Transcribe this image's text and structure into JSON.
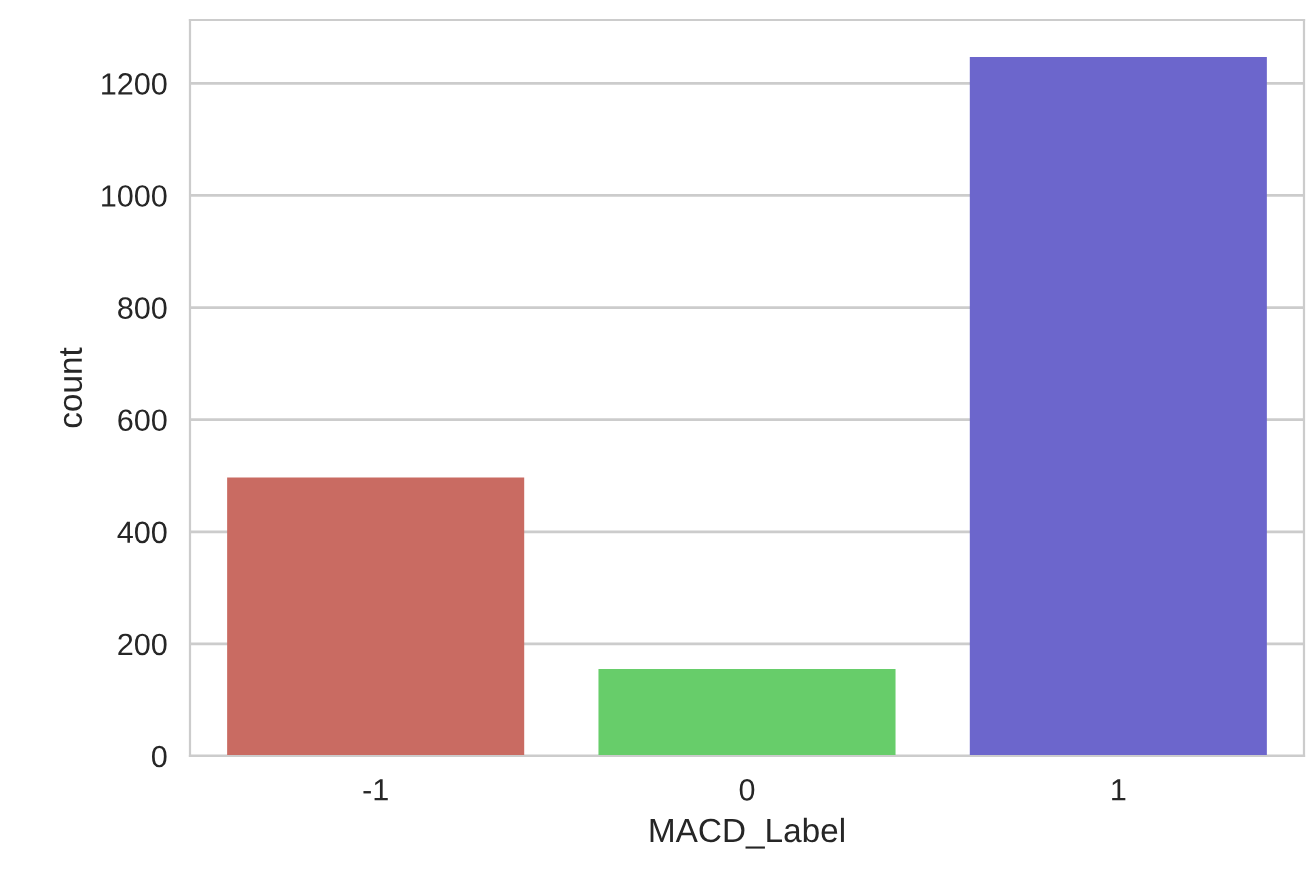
{
  "chart_data": {
    "type": "bar",
    "xlabel": "MACD_Label",
    "ylabel": "count",
    "categories": [
      "-1",
      "0",
      "1"
    ],
    "values": [
      497,
      155,
      1247
    ],
    "colors": [
      "#c96b62",
      "#67cd6a",
      "#6c66cc"
    ],
    "ylim": [
      0,
      1313
    ],
    "yticks": [
      0,
      200,
      400,
      600,
      800,
      1000,
      1200
    ],
    "grid": "y"
  }
}
